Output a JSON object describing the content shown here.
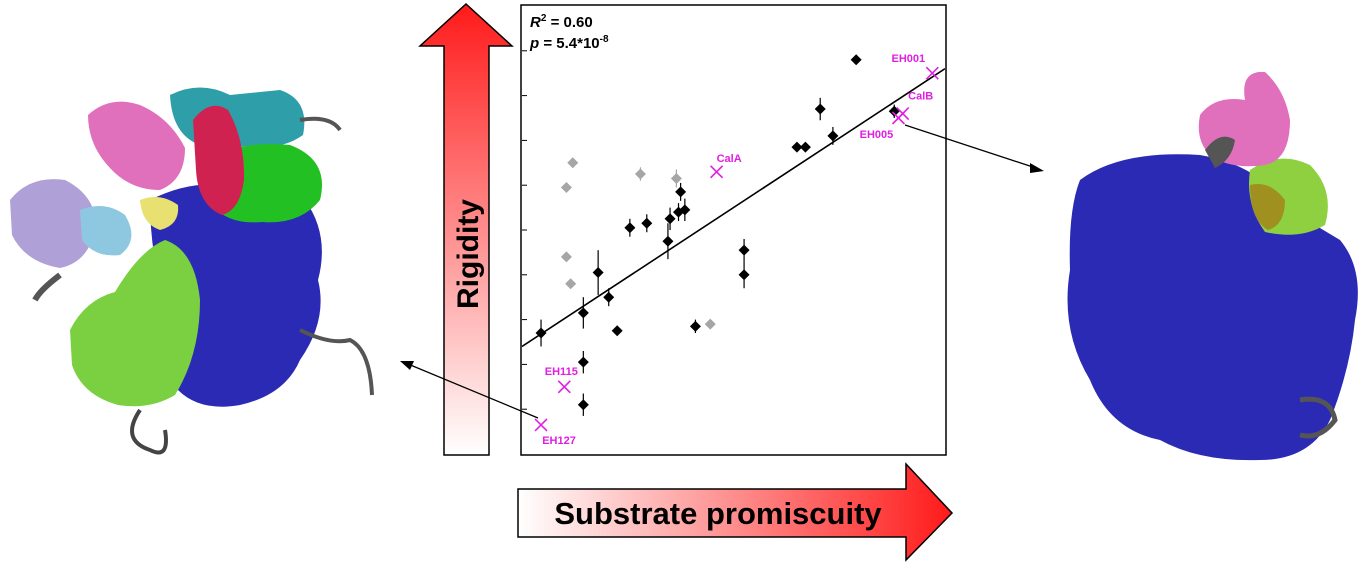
{
  "left_arrow": {
    "label": "Rigidity",
    "color_top": "#ff1a1a",
    "color_bottom": "#ffffff"
  },
  "bottom_arrow": {
    "label": "Substrate promiscuity",
    "color_left": "#ffffff",
    "color_right": "#ff1a1a"
  },
  "stats": {
    "r2_prefix": "R",
    "r2_sup": "2",
    "r2_value": " = 0.60",
    "p_prefix": "p",
    "p_value": " = 5.4*10",
    "p_exp": "-8"
  },
  "colors": {
    "highlight": "#e020e0",
    "black_points": "#000000",
    "grey_points": "#a6a6a6",
    "protein_blue": "#1a1aa8"
  },
  "chart_data": {
    "type": "scatter",
    "title": "",
    "xlabel": "Substrate promiscuity",
    "ylabel": "Rigidity",
    "xlim": [
      0,
      100
    ],
    "ylim": [
      0,
      100
    ],
    "grid": false,
    "regression_line": {
      "x": [
        0,
        100
      ],
      "y": [
        24,
        86
      ]
    },
    "series": [
      {
        "marker": "diamond",
        "color": "#000000",
        "points": [
          {
            "x": 4.5,
            "y": 27.0,
            "err": 3.0
          },
          {
            "x": 18.0,
            "y": 40.5,
            "err": 5.0
          },
          {
            "x": 14.5,
            "y": 31.5,
            "err": 3.5
          },
          {
            "x": 20.5,
            "y": 35.0,
            "err": 2.0
          },
          {
            "x": 22.5,
            "y": 27.5,
            "err": 0.0
          },
          {
            "x": 14.5,
            "y": 20.5,
            "err": 2.5
          },
          {
            "x": 14.5,
            "y": 11.0,
            "err": 2.5
          },
          {
            "x": 25.5,
            "y": 50.5,
            "err": 2.0
          },
          {
            "x": 29.5,
            "y": 51.5,
            "err": 2.0
          },
          {
            "x": 35.0,
            "y": 52.5,
            "err": 2.5
          },
          {
            "x": 34.5,
            "y": 47.5,
            "err": 4.0
          },
          {
            "x": 37.0,
            "y": 54.0,
            "err": 2.0
          },
          {
            "x": 38.5,
            "y": 54.5,
            "err": 2.5
          },
          {
            "x": 37.5,
            "y": 58.5,
            "err": 2.0
          },
          {
            "x": 41.0,
            "y": 28.5,
            "err": 1.5
          },
          {
            "x": 52.5,
            "y": 45.5,
            "err": 2.5
          },
          {
            "x": 52.5,
            "y": 40.0,
            "err": 3.0
          },
          {
            "x": 65.0,
            "y": 68.5,
            "err": 1.0
          },
          {
            "x": 67.0,
            "y": 68.5,
            "err": 1.0
          },
          {
            "x": 70.5,
            "y": 77.0,
            "err": 2.5
          },
          {
            "x": 73.5,
            "y": 71.0,
            "err": 2.0
          },
          {
            "x": 79.0,
            "y": 88.0,
            "err": 0.0
          },
          {
            "x": 88.0,
            "y": 76.5,
            "err": 1.5
          }
        ]
      },
      {
        "marker": "diamond",
        "color": "#a6a6a6",
        "points": [
          {
            "x": 10.5,
            "y": 59.5,
            "err": 0.0
          },
          {
            "x": 12.0,
            "y": 65.0,
            "err": 0.0
          },
          {
            "x": 10.5,
            "y": 44.0,
            "err": 0.0
          },
          {
            "x": 11.5,
            "y": 38.0,
            "err": 0.0
          },
          {
            "x": 28.0,
            "y": 62.5,
            "err": 1.5
          },
          {
            "x": 36.5,
            "y": 61.5,
            "err": 2.0
          },
          {
            "x": 44.5,
            "y": 29.0,
            "err": 1.0
          }
        ]
      },
      {
        "marker": "x",
        "color": "#e020e0",
        "points": [
          {
            "x": 46.0,
            "y": 63.0,
            "label": "CalA"
          },
          {
            "x": 10.0,
            "y": 15.0,
            "label": "EH115"
          },
          {
            "x": 4.5,
            "y": 6.5,
            "label": "EH127"
          },
          {
            "x": 97.0,
            "y": 85.0,
            "label": "EH001"
          },
          {
            "x": 90.0,
            "y": 76.0,
            "label": "CalB"
          },
          {
            "x": 89.0,
            "y": 75.0,
            "label": "EH005"
          }
        ]
      }
    ]
  }
}
